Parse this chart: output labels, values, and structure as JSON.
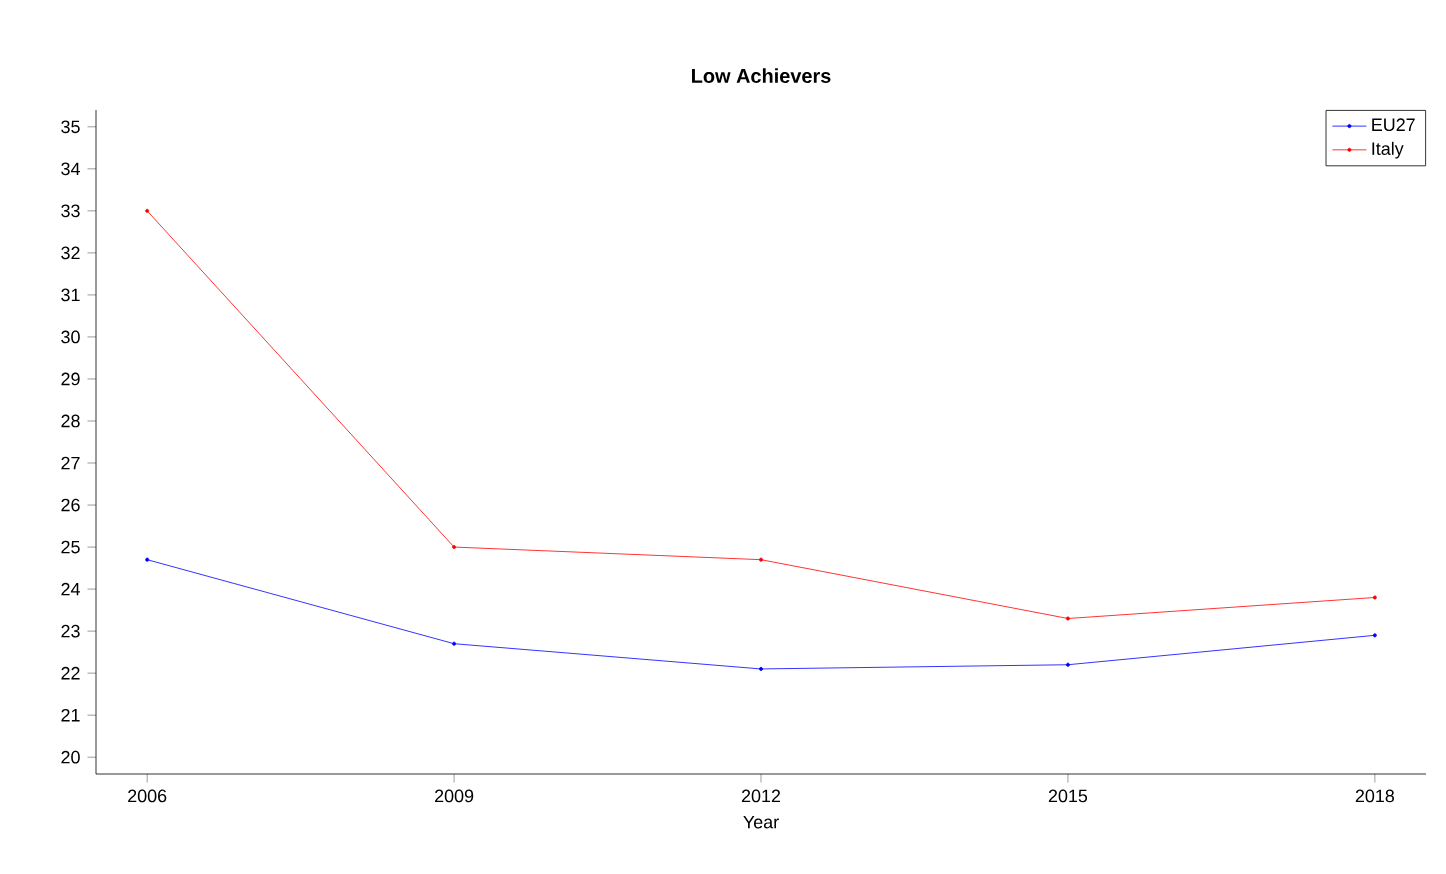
{
  "chart_data": {
    "type": "line",
    "title": "Low Achievers",
    "xlabel": "Year",
    "x": [
      2006,
      2009,
      2012,
      2015,
      2018
    ],
    "series": [
      {
        "name": "EU27",
        "color": "#0000ff",
        "values": [
          24.7,
          22.7,
          22.1,
          22.2,
          22.9
        ]
      },
      {
        "name": "Italy",
        "color": "#ff0000",
        "values": [
          33.0,
          25.0,
          24.7,
          23.3,
          23.8
        ]
      }
    ],
    "xlim": [
      2005.5,
      2018.5
    ],
    "ylim": [
      19.6,
      35.4
    ],
    "xticks": [
      2006,
      2009,
      2012,
      2015,
      2018
    ],
    "yticks": [
      20,
      21,
      22,
      23,
      24,
      25,
      26,
      27,
      28,
      29,
      30,
      31,
      32,
      33,
      34,
      35
    ],
    "legend": "top right",
    "marker": "circle",
    "line_style": "solid",
    "grid": false
  }
}
